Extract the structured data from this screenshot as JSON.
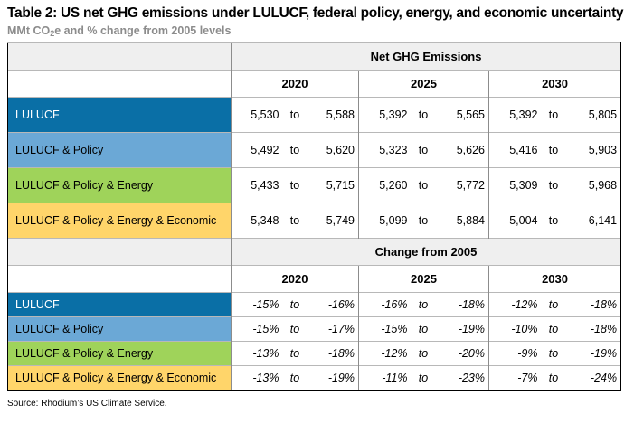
{
  "title": "Table 2: US net GHG emissions under LULUCF, federal policy, energy, and economic uncertainty",
  "subtitle_pre": "MMt CO",
  "subtitle_sub": "2",
  "subtitle_post": "e and % change from 2005 levels",
  "source": "Source: Rhodium’s US Climate Service.",
  "to_word": "to",
  "years": [
    "2020",
    "2025",
    "2030"
  ],
  "net": {
    "header": "Net GHG Emissions",
    "rows": [
      {
        "label": "LULUCF",
        "color": "#0a6fa6",
        "values": [
          [
            "5,530",
            "5,588"
          ],
          [
            "5,392",
            "5,565"
          ],
          [
            "5,392",
            "5,805"
          ]
        ]
      },
      {
        "label": "LULUCF & Policy",
        "color": "#6ba8d6",
        "values": [
          [
            "5,492",
            "5,620"
          ],
          [
            "5,323",
            "5,626"
          ],
          [
            "5,416",
            "5,903"
          ]
        ]
      },
      {
        "label": "LULUCF & Policy & Energy",
        "color": "#9fd35a",
        "values": [
          [
            "5,433",
            "5,715"
          ],
          [
            "5,260",
            "5,772"
          ],
          [
            "5,309",
            "5,968"
          ]
        ]
      },
      {
        "label": "LULUCF & Policy & Energy & Economic",
        "color": "#ffd56a",
        "values": [
          [
            "5,348",
            "5,749"
          ],
          [
            "5,099",
            "5,884"
          ],
          [
            "5,004",
            "6,141"
          ]
        ]
      }
    ]
  },
  "change": {
    "header": "Change from 2005",
    "rows": [
      {
        "label": "LULUCF",
        "values": [
          [
            "-15%",
            "-16%"
          ],
          [
            "-16%",
            "-18%"
          ],
          [
            "-12%",
            "-18%"
          ]
        ]
      },
      {
        "label": "LULUCF & Policy",
        "values": [
          [
            "-15%",
            "-17%"
          ],
          [
            "-15%",
            "-19%"
          ],
          [
            "-10%",
            "-18%"
          ]
        ]
      },
      {
        "label": "LULUCF & Policy & Energy",
        "values": [
          [
            "-13%",
            "-18%"
          ],
          [
            "-12%",
            "-20%"
          ],
          [
            "-9%",
            "-19%"
          ]
        ]
      },
      {
        "label": "LULUCF & Policy & Energy & Economic",
        "values": [
          [
            "-13%",
            "-19%"
          ],
          [
            "-11%",
            "-23%"
          ],
          [
            "-7%",
            "-24%"
          ]
        ]
      }
    ]
  }
}
